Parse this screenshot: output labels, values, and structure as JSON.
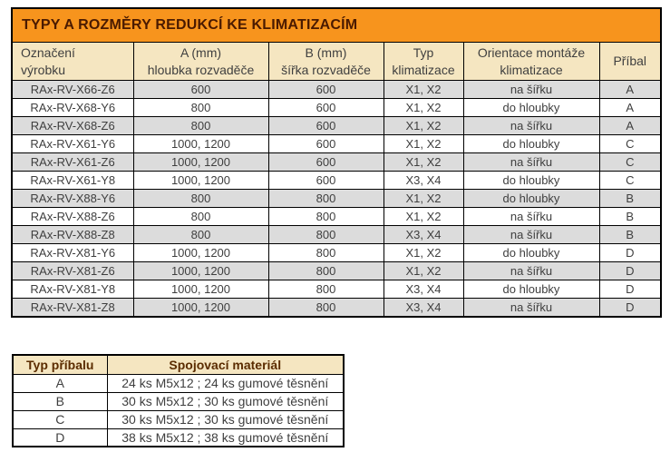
{
  "colors": {
    "title_bar_bg": "#f7941d",
    "title_text": "#4a1a00",
    "header_row_bg": "#f5e6c1",
    "stripe_row_bg": "#dcdcdc",
    "body_text": "#3f3f3f",
    "accessory_header_text": "#5b2c00",
    "border": "#000000"
  },
  "main_table": {
    "title": "TYPY A ROZMĚRY REDUKCÍ KE KLIMATIZACÍM",
    "columns": [
      "Označení\nvýrobku",
      "A (mm)\nhloubka rozvaděče",
      "B (mm)\nšířka rozvaděče",
      "Typ\nklimatizace",
      "Orientace montáže\nklimatizace",
      "Příbal"
    ],
    "rows": [
      [
        "RAx-RV-X66-Z6",
        "600",
        "600",
        "X1, X2",
        "na šířku",
        "A"
      ],
      [
        "RAx-RV-X68-Y6",
        "800",
        "600",
        "X1, X2",
        "do hloubky",
        "A"
      ],
      [
        "RAx-RV-X68-Z6",
        "800",
        "600",
        "X1, X2",
        "na šířku",
        "A"
      ],
      [
        "RAx-RV-X61-Y6",
        "1000, 1200",
        "600",
        "X1, X2",
        "do hloubky",
        "C"
      ],
      [
        "RAx-RV-X61-Z6",
        "1000, 1200",
        "600",
        "X1, X2",
        "na šířku",
        "C"
      ],
      [
        "RAx-RV-X61-Y8",
        "1000, 1200",
        "600",
        "X3, X4",
        "do hloubky",
        "C"
      ],
      [
        "RAx-RV-X88-Y6",
        "800",
        "800",
        "X1, X2",
        "do hloubky",
        "B"
      ],
      [
        "RAx-RV-X88-Z6",
        "800",
        "800",
        "X1, X2",
        "na šířku",
        "B"
      ],
      [
        "RAx-RV-X88-Z8",
        "800",
        "800",
        "X3, X4",
        "na šířku",
        "B"
      ],
      [
        "RAx-RV-X81-Y6",
        "1000, 1200",
        "800",
        "X1, X2",
        "do hloubky",
        "D"
      ],
      [
        "RAx-RV-X81-Z6",
        "1000, 1200",
        "800",
        "X1, X2",
        "na šířku",
        "D"
      ],
      [
        "RAx-RV-X81-Y8",
        "1000, 1200",
        "800",
        "X3, X4",
        "do hloubky",
        "D"
      ],
      [
        "RAx-RV-X81-Z8",
        "1000, 1200",
        "800",
        "X3, X4",
        "na šířku",
        "D"
      ]
    ]
  },
  "accessory_table": {
    "columns": [
      "Typ příbalu",
      "Spojovací materiál"
    ],
    "rows": [
      [
        "A",
        "24 ks M5x12 ; 24 ks gumové těsnění"
      ],
      [
        "B",
        "30 ks M5x12 ; 30 ks gumové těsnění"
      ],
      [
        "C",
        "30 ks M5x12 ; 30 ks gumové těsnění"
      ],
      [
        "D",
        "38 ks M5x12 ; 38 ks gumové těsnění"
      ]
    ]
  }
}
